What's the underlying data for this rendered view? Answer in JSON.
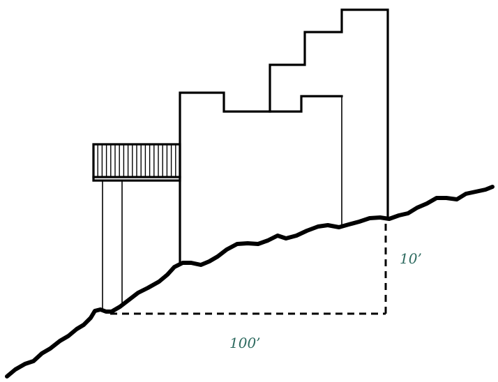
{
  "labels": {
    "horizontal_run": "100’",
    "vertical_rise": "10’"
  },
  "colors": {
    "line": "#000000",
    "label": "#2d6a5f",
    "background": "#ffffff"
  }
}
